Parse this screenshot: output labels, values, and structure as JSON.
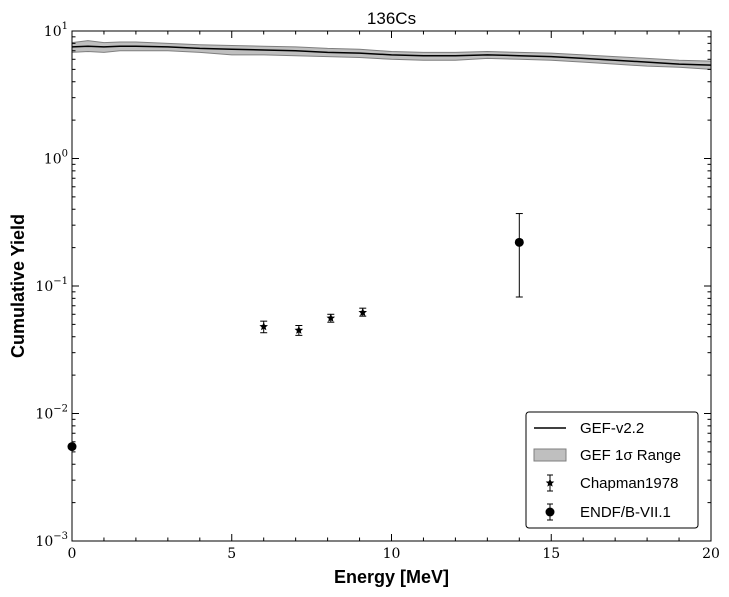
{
  "chart_data": {
    "type": "scatter",
    "title": "136Cs",
    "xlabel": "Energy [MeV]",
    "ylabel": "Cumulative Yield",
    "xlim": [
      0,
      20
    ],
    "ylim": [
      0.001,
      10
    ],
    "yscale": "log",
    "x_ticks": [
      0,
      5,
      10,
      15,
      20
    ],
    "x_tick_labels": [
      "0",
      "5",
      "10",
      "15",
      "20"
    ],
    "y_ticks": [
      {
        "value": 0.001,
        "base": "10",
        "exp": "−3"
      },
      {
        "value": 0.01,
        "base": "10",
        "exp": "−2"
      },
      {
        "value": 0.1,
        "base": "10",
        "exp": "−1"
      },
      {
        "value": 1,
        "base": "10",
        "exp": "0"
      },
      {
        "value": 10,
        "base": "10",
        "exp": "1"
      }
    ],
    "grid": false,
    "legend_position": "lower-right",
    "series": [
      {
        "name": "GEF-v2.2",
        "kind": "line",
        "x": [
          0,
          0.5,
          1,
          1.5,
          2,
          3,
          4,
          5,
          6,
          7,
          8,
          9,
          10,
          11,
          12,
          13,
          14,
          15,
          16,
          17,
          18,
          19,
          20
        ],
        "y": [
          7.5,
          7.6,
          7.5,
          7.6,
          7.6,
          7.5,
          7.3,
          7.2,
          7.1,
          7.0,
          6.8,
          6.7,
          6.5,
          6.4,
          6.4,
          6.5,
          6.4,
          6.3,
          6.1,
          5.9,
          5.7,
          5.5,
          5.4
        ]
      },
      {
        "name": "GEF 1σ Range",
        "kind": "band",
        "x": [
          0,
          0.5,
          1,
          1.5,
          2,
          3,
          4,
          5,
          6,
          7,
          8,
          9,
          10,
          11,
          12,
          13,
          14,
          15,
          16,
          17,
          18,
          19,
          20
        ],
        "y_low": [
          6.8,
          6.9,
          6.8,
          7.0,
          7.0,
          7.0,
          6.8,
          6.5,
          6.5,
          6.4,
          6.3,
          6.2,
          6.0,
          5.9,
          5.9,
          6.1,
          6.0,
          5.9,
          5.7,
          5.5,
          5.3,
          5.2,
          5.0
        ],
        "y_high": [
          8.1,
          8.4,
          8.1,
          8.2,
          8.2,
          8.0,
          7.8,
          7.7,
          7.6,
          7.5,
          7.3,
          7.2,
          6.9,
          6.8,
          6.8,
          6.9,
          6.8,
          6.7,
          6.5,
          6.3,
          6.1,
          5.9,
          5.8
        ]
      },
      {
        "name": "Chapman1978",
        "kind": "errorbar-star",
        "x": [
          6.0,
          7.1,
          8.1,
          9.1
        ],
        "y": [
          0.048,
          0.045,
          0.056,
          0.062
        ],
        "y_err_low": [
          0.043,
          0.041,
          0.052,
          0.058
        ],
        "y_err_high": [
          0.053,
          0.049,
          0.06,
          0.067
        ]
      },
      {
        "name": "ENDF/B-VII.1",
        "kind": "errorbar-circle",
        "x": [
          0,
          14
        ],
        "y": [
          0.0055,
          0.22
        ],
        "y_err_low": [
          null,
          0.082
        ],
        "y_err_high": [
          null,
          0.37
        ]
      }
    ],
    "colors": {
      "line": "#000000",
      "band_fill": "#bfbfbf",
      "band_edge": "#7f7f7f"
    }
  }
}
